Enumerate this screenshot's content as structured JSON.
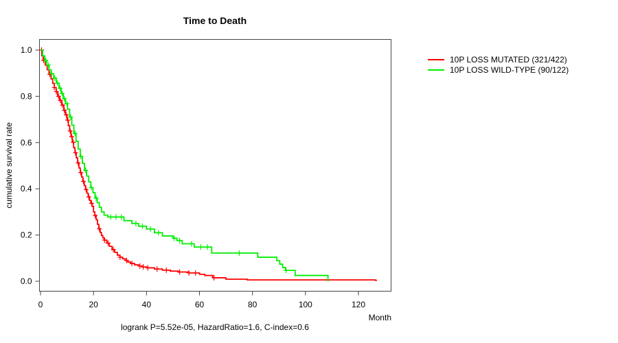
{
  "title": "Time to Death",
  "axes": {
    "x_label": "Month",
    "y_label": "cumulative survival rate",
    "x_ticks": [
      0,
      20,
      40,
      60,
      80,
      100,
      120
    ],
    "y_tick_labels": [
      "1.0",
      "0.8",
      "0.6",
      "0.4",
      "0.2",
      "0.0"
    ]
  },
  "annotation": "logrank P=5.52e-05, HazardRatio=1.6, C-index=0.6",
  "legend": [
    {
      "label": "10P LOSS MUTATED (321/422)",
      "color": "#ff0000"
    },
    {
      "label": "10P LOSS WILD-TYPE (90/122)",
      "color": "#00ee00"
    }
  ],
  "colors": {
    "mutated": "#ff0000",
    "wild_type": "#00ee00",
    "axis": "#444444",
    "text": "#000000"
  },
  "chart_data": {
    "type": "line",
    "subtype": "kaplan-meier-step",
    "title": "Time to Death",
    "xlabel": "Month",
    "ylabel": "cumulative survival rate",
    "xlim": [
      0,
      132
    ],
    "ylim": [
      0.0,
      1.0
    ],
    "x_ticks": [
      0,
      20,
      40,
      60,
      80,
      100,
      120
    ],
    "y_ticks": [
      1.0,
      0.8,
      0.6,
      0.4,
      0.2,
      0.0
    ],
    "legend_position": "right-outside-top",
    "grid": false,
    "stats": {
      "logrank_p": "5.52e-05",
      "hazard_ratio": "1.6",
      "c_index": "0.6"
    },
    "series": [
      {
        "name": "10P LOSS MUTATED (321/422)",
        "events": "321/422",
        "color": "#ff0000",
        "steps": [
          [
            0,
            1.0
          ],
          [
            0.5,
            0.975
          ],
          [
            1,
            0.955
          ],
          [
            1.8,
            0.935
          ],
          [
            2.5,
            0.915
          ],
          [
            3.2,
            0.895
          ],
          [
            4,
            0.875
          ],
          [
            4.6,
            0.856
          ],
          [
            5.2,
            0.838
          ],
          [
            5.9,
            0.82
          ],
          [
            6.5,
            0.8
          ],
          [
            7.2,
            0.782
          ],
          [
            8,
            0.762
          ],
          [
            8.8,
            0.74
          ],
          [
            9.4,
            0.72
          ],
          [
            10,
            0.697
          ],
          [
            10.5,
            0.673
          ],
          [
            11,
            0.65
          ],
          [
            11.5,
            0.625
          ],
          [
            12,
            0.601
          ],
          [
            12.5,
            0.578
          ],
          [
            13,
            0.556
          ],
          [
            13.5,
            0.534
          ],
          [
            14,
            0.512
          ],
          [
            14.5,
            0.49
          ],
          [
            15,
            0.47
          ],
          [
            15.5,
            0.451
          ],
          [
            16,
            0.432
          ],
          [
            16.5,
            0.414
          ],
          [
            17,
            0.397
          ],
          [
            17.5,
            0.381
          ],
          [
            18,
            0.365
          ],
          [
            18.5,
            0.35
          ],
          [
            19,
            0.337
          ],
          [
            19.5,
            0.324
          ],
          [
            20,
            0.3
          ],
          [
            20.5,
            0.285
          ],
          [
            21,
            0.266
          ],
          [
            21.5,
            0.246
          ],
          [
            22,
            0.227
          ],
          [
            22.5,
            0.211
          ],
          [
            23,
            0.198
          ],
          [
            23.5,
            0.188
          ],
          [
            24,
            0.178
          ],
          [
            25,
            0.165
          ],
          [
            26,
            0.151
          ],
          [
            27,
            0.137
          ],
          [
            28,
            0.125
          ],
          [
            29,
            0.113
          ],
          [
            30,
            0.104
          ],
          [
            31,
            0.097
          ],
          [
            32,
            0.09
          ],
          [
            33,
            0.083
          ],
          [
            34,
            0.077
          ],
          [
            35.5,
            0.071
          ],
          [
            37,
            0.066
          ],
          [
            38.5,
            0.062
          ],
          [
            40,
            0.058
          ],
          [
            43,
            0.053
          ],
          [
            46,
            0.048
          ],
          [
            49,
            0.044
          ],
          [
            52,
            0.04
          ],
          [
            56,
            0.036
          ],
          [
            60,
            0.03
          ],
          [
            62,
            0.025
          ],
          [
            65,
            0.015
          ],
          [
            70,
            0.009
          ],
          [
            78,
            0.006
          ],
          [
            126.3,
            0.004
          ],
          [
            127,
            0.004
          ]
        ],
        "censor_months": [
          0.4,
          1.2,
          3.5,
          5.2,
          6,
          6.8,
          7.5,
          8.3,
          9,
          9.7,
          10.3,
          11.2,
          11.8,
          12.4,
          13.2,
          14.2,
          15.2,
          16.2,
          17.2,
          18.2,
          19.3,
          20.6,
          22.2,
          24.2,
          25.5,
          27.5,
          30,
          32.5,
          34.5,
          37.5,
          38.8,
          40.5,
          44,
          47.5,
          52.5,
          56,
          58.5,
          65.5
        ]
      },
      {
        "name": "10P LOSS WILD-TYPE (90/122)",
        "events": "90/122",
        "color": "#00ee00",
        "steps": [
          [
            0,
            1.0
          ],
          [
            0.8,
            0.975
          ],
          [
            1.6,
            0.955
          ],
          [
            2.4,
            0.935
          ],
          [
            3.2,
            0.915
          ],
          [
            4,
            0.898
          ],
          [
            5,
            0.878
          ],
          [
            6,
            0.857
          ],
          [
            7,
            0.835
          ],
          [
            7.8,
            0.812
          ],
          [
            8.6,
            0.79
          ],
          [
            9.4,
            0.768
          ],
          [
            10.2,
            0.744
          ],
          [
            11,
            0.71
          ],
          [
            11.8,
            0.675
          ],
          [
            12.6,
            0.64
          ],
          [
            13.4,
            0.605
          ],
          [
            14.2,
            0.572
          ],
          [
            15,
            0.54
          ],
          [
            15.8,
            0.51
          ],
          [
            16.6,
            0.48
          ],
          [
            17.4,
            0.455
          ],
          [
            18.2,
            0.43
          ],
          [
            19,
            0.405
          ],
          [
            19.8,
            0.383
          ],
          [
            20.6,
            0.36
          ],
          [
            21.4,
            0.34
          ],
          [
            22.2,
            0.32
          ],
          [
            23,
            0.3
          ],
          [
            24,
            0.286
          ],
          [
            25.4,
            0.278
          ],
          [
            31.5,
            0.262
          ],
          [
            34.5,
            0.25
          ],
          [
            37,
            0.238
          ],
          [
            40,
            0.226
          ],
          [
            43,
            0.21
          ],
          [
            46,
            0.196
          ],
          [
            50,
            0.186
          ],
          [
            51.5,
            0.176
          ],
          [
            53.5,
            0.162
          ],
          [
            58,
            0.148
          ],
          [
            64.6,
            0.122
          ],
          [
            82,
            0.104
          ],
          [
            89.2,
            0.089
          ],
          [
            90.3,
            0.074
          ],
          [
            91.4,
            0.059
          ],
          [
            92.5,
            0.047
          ],
          [
            96.1,
            0.025
          ],
          [
            108.5,
            0.003
          ],
          [
            108.8,
            0.003
          ]
        ],
        "censor_months": [
          2,
          3,
          4.2,
          5.4,
          6.4,
          7.4,
          8.2,
          9,
          10,
          11.4,
          13,
          15.2,
          17,
          19.2,
          21,
          26.5,
          28.5,
          30.5,
          36,
          38.5,
          41.5,
          44.5,
          50.5,
          52.5,
          57,
          60.5,
          63,
          75,
          92.7
        ]
      }
    ]
  }
}
